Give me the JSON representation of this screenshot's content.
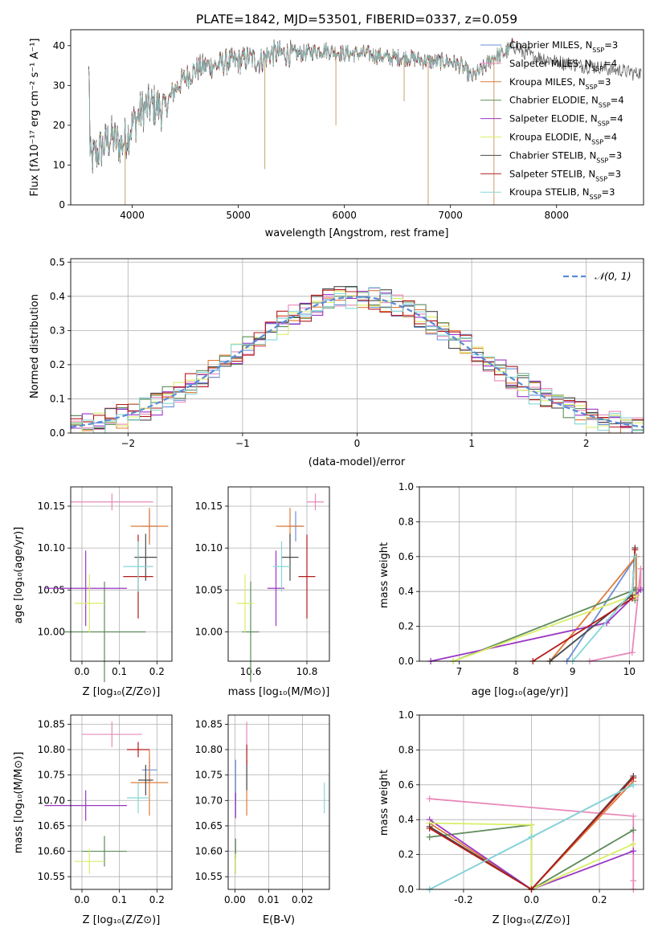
{
  "colors": {
    "Chabrier MILES": "#6a8fd8",
    "Salpeter MILES": "#e889b9",
    "Kroupa MILES": "#e07b39",
    "Chabrier ELODIE": "#5e8a5a",
    "Salpeter ELODIE": "#9a35c4",
    "Kroupa ELODIE": "#d9ee66",
    "Chabrier STELIB": "#4a4a4a",
    "Salpeter STELIB": "#b31b1b",
    "Kroupa STELIB": "#86d6d6",
    "gaussian": "#5a8bd4"
  },
  "chart_data": [
    {
      "type": "line",
      "title": "PLATE=1842, MJD=53501, FIBERID=0337, z=0.059",
      "xlabel": "wavelength [Angstrom, rest frame]",
      "ylabel": "Flux [fλ10⁻¹⁷ erg cm⁻² s⁻¹ A⁻¹]",
      "xlim": [
        3420,
        8820
      ],
      "ylim": [
        0,
        44
      ],
      "xticks": [
        4000,
        5000,
        6000,
        7000,
        8000
      ],
      "yticks": [
        0,
        10,
        20,
        30,
        40
      ],
      "legend_position": "right",
      "legend": [
        {
          "model": "Chabrier MILES",
          "label": "Chabrier MILES, N",
          "sub": "SSP",
          "suffix": "=3"
        },
        {
          "model": "Salpeter MILES",
          "label": "Salpeter MILES, N",
          "sub": "SSP",
          "suffix": "=4"
        },
        {
          "model": "Kroupa MILES",
          "label": "Kroupa MILES, N",
          "sub": "SSP",
          "suffix": "=3"
        },
        {
          "model": "Chabrier ELODIE",
          "label": "Chabrier ELODIE, N",
          "sub": "SSP",
          "suffix": "=4"
        },
        {
          "model": "Salpeter ELODIE",
          "label": "Salpeter ELODIE, N",
          "sub": "SSP",
          "suffix": "=4"
        },
        {
          "model": "Kroupa ELODIE",
          "label": "Kroupa ELODIE, N",
          "sub": "SSP",
          "suffix": "=4"
        },
        {
          "model": "Chabrier STELIB",
          "label": "Chabrier STELIB, N",
          "sub": "SSP",
          "suffix": "=3"
        },
        {
          "model": "Salpeter STELIB",
          "label": "Salpeter STELIB, N",
          "sub": "SSP",
          "suffix": "=3"
        },
        {
          "model": "Kroupa STELIB",
          "label": "Kroupa STELIB, N",
          "sub": "SSP",
          "suffix": "=3"
        }
      ],
      "spectrum_continuum": [
        [
          3600,
          11
        ],
        [
          3700,
          14
        ],
        [
          3800,
          17
        ],
        [
          3900,
          15
        ],
        [
          4000,
          20
        ],
        [
          4100,
          24
        ],
        [
          4200,
          25
        ],
        [
          4300,
          24
        ],
        [
          4400,
          29
        ],
        [
          4500,
          32
        ],
        [
          4600,
          34
        ],
        [
          4700,
          35
        ],
        [
          4800,
          35
        ],
        [
          4900,
          36
        ],
        [
          5000,
          36
        ],
        [
          5100,
          37
        ],
        [
          5200,
          36
        ],
        [
          5300,
          38
        ],
        [
          5400,
          38
        ],
        [
          5600,
          38
        ],
        [
          5800,
          39
        ],
        [
          6000,
          38
        ],
        [
          6200,
          38
        ],
        [
          6400,
          37
        ],
        [
          6600,
          37
        ],
        [
          6800,
          36
        ],
        [
          7000,
          36
        ],
        [
          7100,
          35
        ],
        [
          7200,
          32
        ],
        [
          7300,
          34
        ],
        [
          7400,
          37
        ],
        [
          7500,
          38
        ],
        [
          7600,
          40
        ],
        [
          7700,
          38
        ],
        [
          8000,
          36
        ],
        [
          8300,
          35
        ],
        [
          8500,
          34
        ],
        [
          8800,
          33
        ]
      ],
      "line_spikes": [
        [
          3933,
          0
        ],
        [
          5250,
          9
        ],
        [
          5920,
          20
        ],
        [
          6563,
          26
        ],
        [
          6790,
          0
        ],
        [
          7410,
          0
        ]
      ]
    },
    {
      "type": "line",
      "xlabel": "(data-model)/error",
      "ylabel": "Normed distribution",
      "xlim": [
        -2.5,
        2.5
      ],
      "ylim": [
        0,
        0.51
      ],
      "xticks": [
        -2,
        -1,
        0,
        1,
        2
      ],
      "yticks": [
        0.0,
        0.1,
        0.2,
        0.3,
        0.4,
        0.5
      ],
      "legend": [
        "𝒩(0, 1)"
      ],
      "legend_position": "top-right",
      "gaussian": {
        "mean": 0,
        "sigma": 1
      },
      "histogram_bin_width": 0.1
    },
    {
      "type": "scatter",
      "xlabel": "Z [log₁₀(Z/Z⊙)]",
      "ylabel": "age  [log₁₀(age/yr)]",
      "xlim": [
        -0.03,
        0.24
      ],
      "ylim": [
        9.965,
        10.173
      ],
      "xticks": [
        0.0,
        0.1,
        0.2
      ],
      "yticks": [
        10.0,
        10.05,
        10.1,
        10.15
      ],
      "points": [
        {
          "model": "Chabrier MILES",
          "x": 0.18,
          "y": 10.126,
          "xerr": 0.02,
          "yerr": 0.018
        },
        {
          "model": "Salpeter MILES",
          "x": 0.08,
          "y": 10.155,
          "xerr": 0.11,
          "yerr": 0.01
        },
        {
          "model": "Kroupa MILES",
          "x": 0.18,
          "y": 10.126,
          "xerr": 0.05,
          "yerr": 0.022
        },
        {
          "model": "Chabrier ELODIE",
          "x": 0.06,
          "y": 10.0,
          "xerr": 0.11,
          "yerr": 0.06
        },
        {
          "model": "Salpeter ELODIE",
          "x": 0.01,
          "y": 10.052,
          "xerr": 0.11,
          "yerr": 0.045
        },
        {
          "model": "Kroupa ELODIE",
          "x": 0.02,
          "y": 10.034,
          "xerr": 0.04,
          "yerr": 0.035
        },
        {
          "model": "Chabrier STELIB",
          "x": 0.17,
          "y": 10.089,
          "xerr": 0.03,
          "yerr": 0.028
        },
        {
          "model": "Salpeter STELIB",
          "x": 0.15,
          "y": 10.066,
          "xerr": 0.04,
          "yerr": 0.05
        },
        {
          "model": "Kroupa STELIB",
          "x": 0.15,
          "y": 10.078,
          "xerr": 0.04,
          "yerr": 0.03
        }
      ]
    },
    {
      "type": "scatter",
      "xlabel": "mass [log₁₀(M/M⊙)]",
      "xlim": [
        10.52,
        10.88
      ],
      "ylim": [
        9.965,
        10.173
      ],
      "xticks": [
        10.6,
        10.8
      ],
      "yticks": [
        10.0,
        10.05,
        10.1,
        10.15
      ],
      "points": [
        {
          "model": "Chabrier MILES",
          "x": 10.76,
          "y": 10.126,
          "xerr": 0.03,
          "yerr": 0.018
        },
        {
          "model": "Salpeter MILES",
          "x": 10.83,
          "y": 10.155,
          "xerr": 0.03,
          "yerr": 0.01
        },
        {
          "model": "Kroupa MILES",
          "x": 10.74,
          "y": 10.126,
          "xerr": 0.05,
          "yerr": 0.022
        },
        {
          "model": "Chabrier ELODIE",
          "x": 10.6,
          "y": 10.0,
          "xerr": 0.03,
          "yerr": 0.06
        },
        {
          "model": "Salpeter ELODIE",
          "x": 10.69,
          "y": 10.052,
          "xerr": 0.03,
          "yerr": 0.045
        },
        {
          "model": "Kroupa ELODIE",
          "x": 10.58,
          "y": 10.034,
          "xerr": 0.03,
          "yerr": 0.035
        },
        {
          "model": "Chabrier STELIB",
          "x": 10.74,
          "y": 10.089,
          "xerr": 0.03,
          "yerr": 0.028
        },
        {
          "model": "Salpeter STELIB",
          "x": 10.8,
          "y": 10.066,
          "xerr": 0.03,
          "yerr": 0.05
        },
        {
          "model": "Kroupa STELIB",
          "x": 10.71,
          "y": 10.078,
          "xerr": 0.03,
          "yerr": 0.03
        }
      ]
    },
    {
      "type": "line",
      "xlabel": "age  [log₁₀(age/yr)]",
      "ylabel": "mass weight",
      "xlim": [
        6.3,
        10.25
      ],
      "ylim": [
        0,
        1.0
      ],
      "xticks": [
        7,
        8,
        9,
        10
      ],
      "yticks": [
        0.0,
        0.2,
        0.4,
        0.6,
        0.8,
        1.0
      ],
      "series": [
        {
          "model": "Chabrier MILES",
          "points": [
            [
              10.12,
              0.42
            ],
            [
              10.12,
              0.6
            ],
            [
              8.9,
              0.0
            ]
          ]
        },
        {
          "model": "Salpeter MILES",
          "points": [
            [
              9.3,
              0.0
            ],
            [
              10.05,
              0.05
            ],
            [
              10.2,
              0.53
            ],
            [
              10.2,
              0.42
            ]
          ]
        },
        {
          "model": "Kroupa MILES",
          "points": [
            [
              10.12,
              0.38
            ],
            [
              10.12,
              0.6
            ],
            [
              8.6,
              0.0
            ]
          ]
        },
        {
          "model": "Chabrier ELODIE",
          "points": [
            [
              6.9,
              0.0
            ],
            [
              10.1,
              0.41
            ],
            [
              10.1,
              0.35
            ]
          ]
        },
        {
          "model": "Salpeter ELODIE",
          "points": [
            [
              6.5,
              0.0
            ],
            [
              9.6,
              0.22
            ],
            [
              10.2,
              0.41
            ]
          ]
        },
        {
          "model": "Kroupa ELODIE",
          "points": [
            [
              6.9,
              0.0
            ],
            [
              10.1,
              0.38
            ],
            [
              10.1,
              0.37
            ]
          ]
        },
        {
          "model": "Chabrier STELIB",
          "points": [
            [
              8.6,
              0.0
            ],
            [
              10.05,
              0.38
            ],
            [
              10.1,
              0.65
            ]
          ]
        },
        {
          "model": "Salpeter STELIB",
          "points": [
            [
              8.3,
              0.0
            ],
            [
              10.05,
              0.36
            ],
            [
              10.1,
              0.64
            ]
          ]
        },
        {
          "model": "Kroupa STELIB",
          "points": [
            [
              9.0,
              0.0
            ],
            [
              10.05,
              0.4
            ],
            [
              10.1,
              0.6
            ]
          ]
        }
      ]
    },
    {
      "type": "scatter",
      "xlabel": "Z [log₁₀(Z/Z⊙)]",
      "ylabel": "mass [log₁₀(M/M⊙)]",
      "xlim": [
        -0.03,
        0.24
      ],
      "ylim": [
        10.525,
        10.868
      ],
      "xticks": [
        0.0,
        0.1,
        0.2
      ],
      "yticks": [
        10.55,
        10.6,
        10.65,
        10.7,
        10.75,
        10.8,
        10.85
      ],
      "points": [
        {
          "model": "Chabrier MILES",
          "x": 0.18,
          "y": 10.76,
          "xerr": 0.02,
          "yerr": 0.025
        },
        {
          "model": "Salpeter MILES",
          "x": 0.08,
          "y": 10.83,
          "xerr": 0.08,
          "yerr": 0.025
        },
        {
          "model": "Kroupa MILES",
          "x": 0.18,
          "y": 10.735,
          "xerr": 0.05,
          "yerr": 0.065
        },
        {
          "model": "Chabrier ELODIE",
          "x": 0.06,
          "y": 10.6,
          "xerr": 0.06,
          "yerr": 0.03
        },
        {
          "model": "Salpeter ELODIE",
          "x": 0.01,
          "y": 10.69,
          "xerr": 0.11,
          "yerr": 0.03
        },
        {
          "model": "Kroupa ELODIE",
          "x": 0.02,
          "y": 10.58,
          "xerr": 0.04,
          "yerr": 0.025
        },
        {
          "model": "Chabrier STELIB",
          "x": 0.17,
          "y": 10.74,
          "xerr": 0.02,
          "yerr": 0.03
        },
        {
          "model": "Salpeter STELIB",
          "x": 0.15,
          "y": 10.8,
          "xerr": 0.03,
          "yerr": 0.015
        },
        {
          "model": "Kroupa STELIB",
          "x": 0.15,
          "y": 10.705,
          "xerr": 0.03,
          "yerr": 0.03
        }
      ]
    },
    {
      "type": "scatter",
      "xlabel": "E(B-V)",
      "xlim": [
        -0.002,
        0.028
      ],
      "ylim": [
        10.525,
        10.868
      ],
      "xticks": [
        0.0,
        0.01,
        0.02
      ],
      "yticks": [
        10.55,
        10.6,
        10.65,
        10.7,
        10.75,
        10.8,
        10.85
      ],
      "points": [
        {
          "model": "Chabrier MILES",
          "x": 0.0002,
          "y": 10.74,
          "xerr": 0,
          "yerr": 0.04
        },
        {
          "model": "Salpeter MILES",
          "x": 0.0035,
          "y": 10.82,
          "xerr": 0,
          "yerr": 0.035
        },
        {
          "model": "Kroupa MILES",
          "x": 0.0035,
          "y": 10.72,
          "xerr": 0,
          "yerr": 0.05
        },
        {
          "model": "Chabrier ELODIE",
          "x": 0.0002,
          "y": 10.605,
          "xerr": 0,
          "yerr": 0.02
        },
        {
          "model": "Salpeter ELODIE",
          "x": 0.0002,
          "y": 10.69,
          "xerr": 0,
          "yerr": 0.025
        },
        {
          "model": "Kroupa ELODIE",
          "x": 0.0002,
          "y": 10.575,
          "xerr": 0,
          "yerr": 0.02
        },
        {
          "model": "Chabrier STELIB",
          "x": 0.0035,
          "y": 10.75,
          "xerr": 0,
          "yerr": 0.03
        },
        {
          "model": "Salpeter STELIB",
          "x": 0.0035,
          "y": 10.79,
          "xerr": 0,
          "yerr": 0.02
        },
        {
          "model": "Kroupa STELIB",
          "x": 0.0265,
          "y": 10.705,
          "xerr": 0,
          "yerr": 0.03
        }
      ]
    },
    {
      "type": "line",
      "xlabel": "Z [log₁₀(Z/Z⊙)]",
      "ylabel": "mass weight",
      "xlim": [
        -0.33,
        0.33
      ],
      "ylim": [
        0,
        1.0
      ],
      "xticks": [
        -0.2,
        0.0,
        0.2
      ],
      "yticks": [
        0.0,
        0.2,
        0.4,
        0.6,
        0.8,
        1.0
      ],
      "series": [
        {
          "model": "Chabrier MILES",
          "points": [
            [
              -0.3,
              0.0
            ],
            [
              0.0,
              0.3
            ],
            [
              0.3,
              0.6
            ]
          ]
        },
        {
          "model": "Salpeter MILES",
          "points": [
            [
              -0.3,
              0.52
            ],
            [
              0.3,
              0.42
            ],
            [
              0.3,
              0.05
            ],
            [
              0.3,
              0.0
            ]
          ]
        },
        {
          "model": "Kroupa MILES",
          "points": [
            [
              -0.3,
              0.38
            ],
            [
              0.0,
              0.0
            ],
            [
              0.3,
              0.62
            ]
          ]
        },
        {
          "model": "Chabrier ELODIE",
          "points": [
            [
              -0.3,
              0.3
            ],
            [
              0.0,
              0.37
            ],
            [
              0.0,
              0.0
            ],
            [
              0.3,
              0.34
            ]
          ]
        },
        {
          "model": "Salpeter ELODIE",
          "points": [
            [
              -0.3,
              0.4
            ],
            [
              0.0,
              0.0
            ],
            [
              0.3,
              0.22
            ]
          ]
        },
        {
          "model": "Kroupa ELODIE",
          "points": [
            [
              -0.3,
              0.38
            ],
            [
              0.0,
              0.37
            ],
            [
              0.0,
              0.0
            ],
            [
              0.3,
              0.26
            ]
          ]
        },
        {
          "model": "Chabrier STELIB",
          "points": [
            [
              -0.3,
              0.36
            ],
            [
              0.0,
              0.0
            ],
            [
              0.3,
              0.65
            ]
          ]
        },
        {
          "model": "Salpeter STELIB",
          "points": [
            [
              -0.3,
              0.35
            ],
            [
              0.0,
              0.0
            ],
            [
              0.3,
              0.64
            ]
          ]
        },
        {
          "model": "Kroupa STELIB",
          "points": [
            [
              -0.3,
              0.0
            ],
            [
              0.0,
              0.3
            ],
            [
              0.3,
              0.6
            ]
          ]
        }
      ]
    }
  ]
}
